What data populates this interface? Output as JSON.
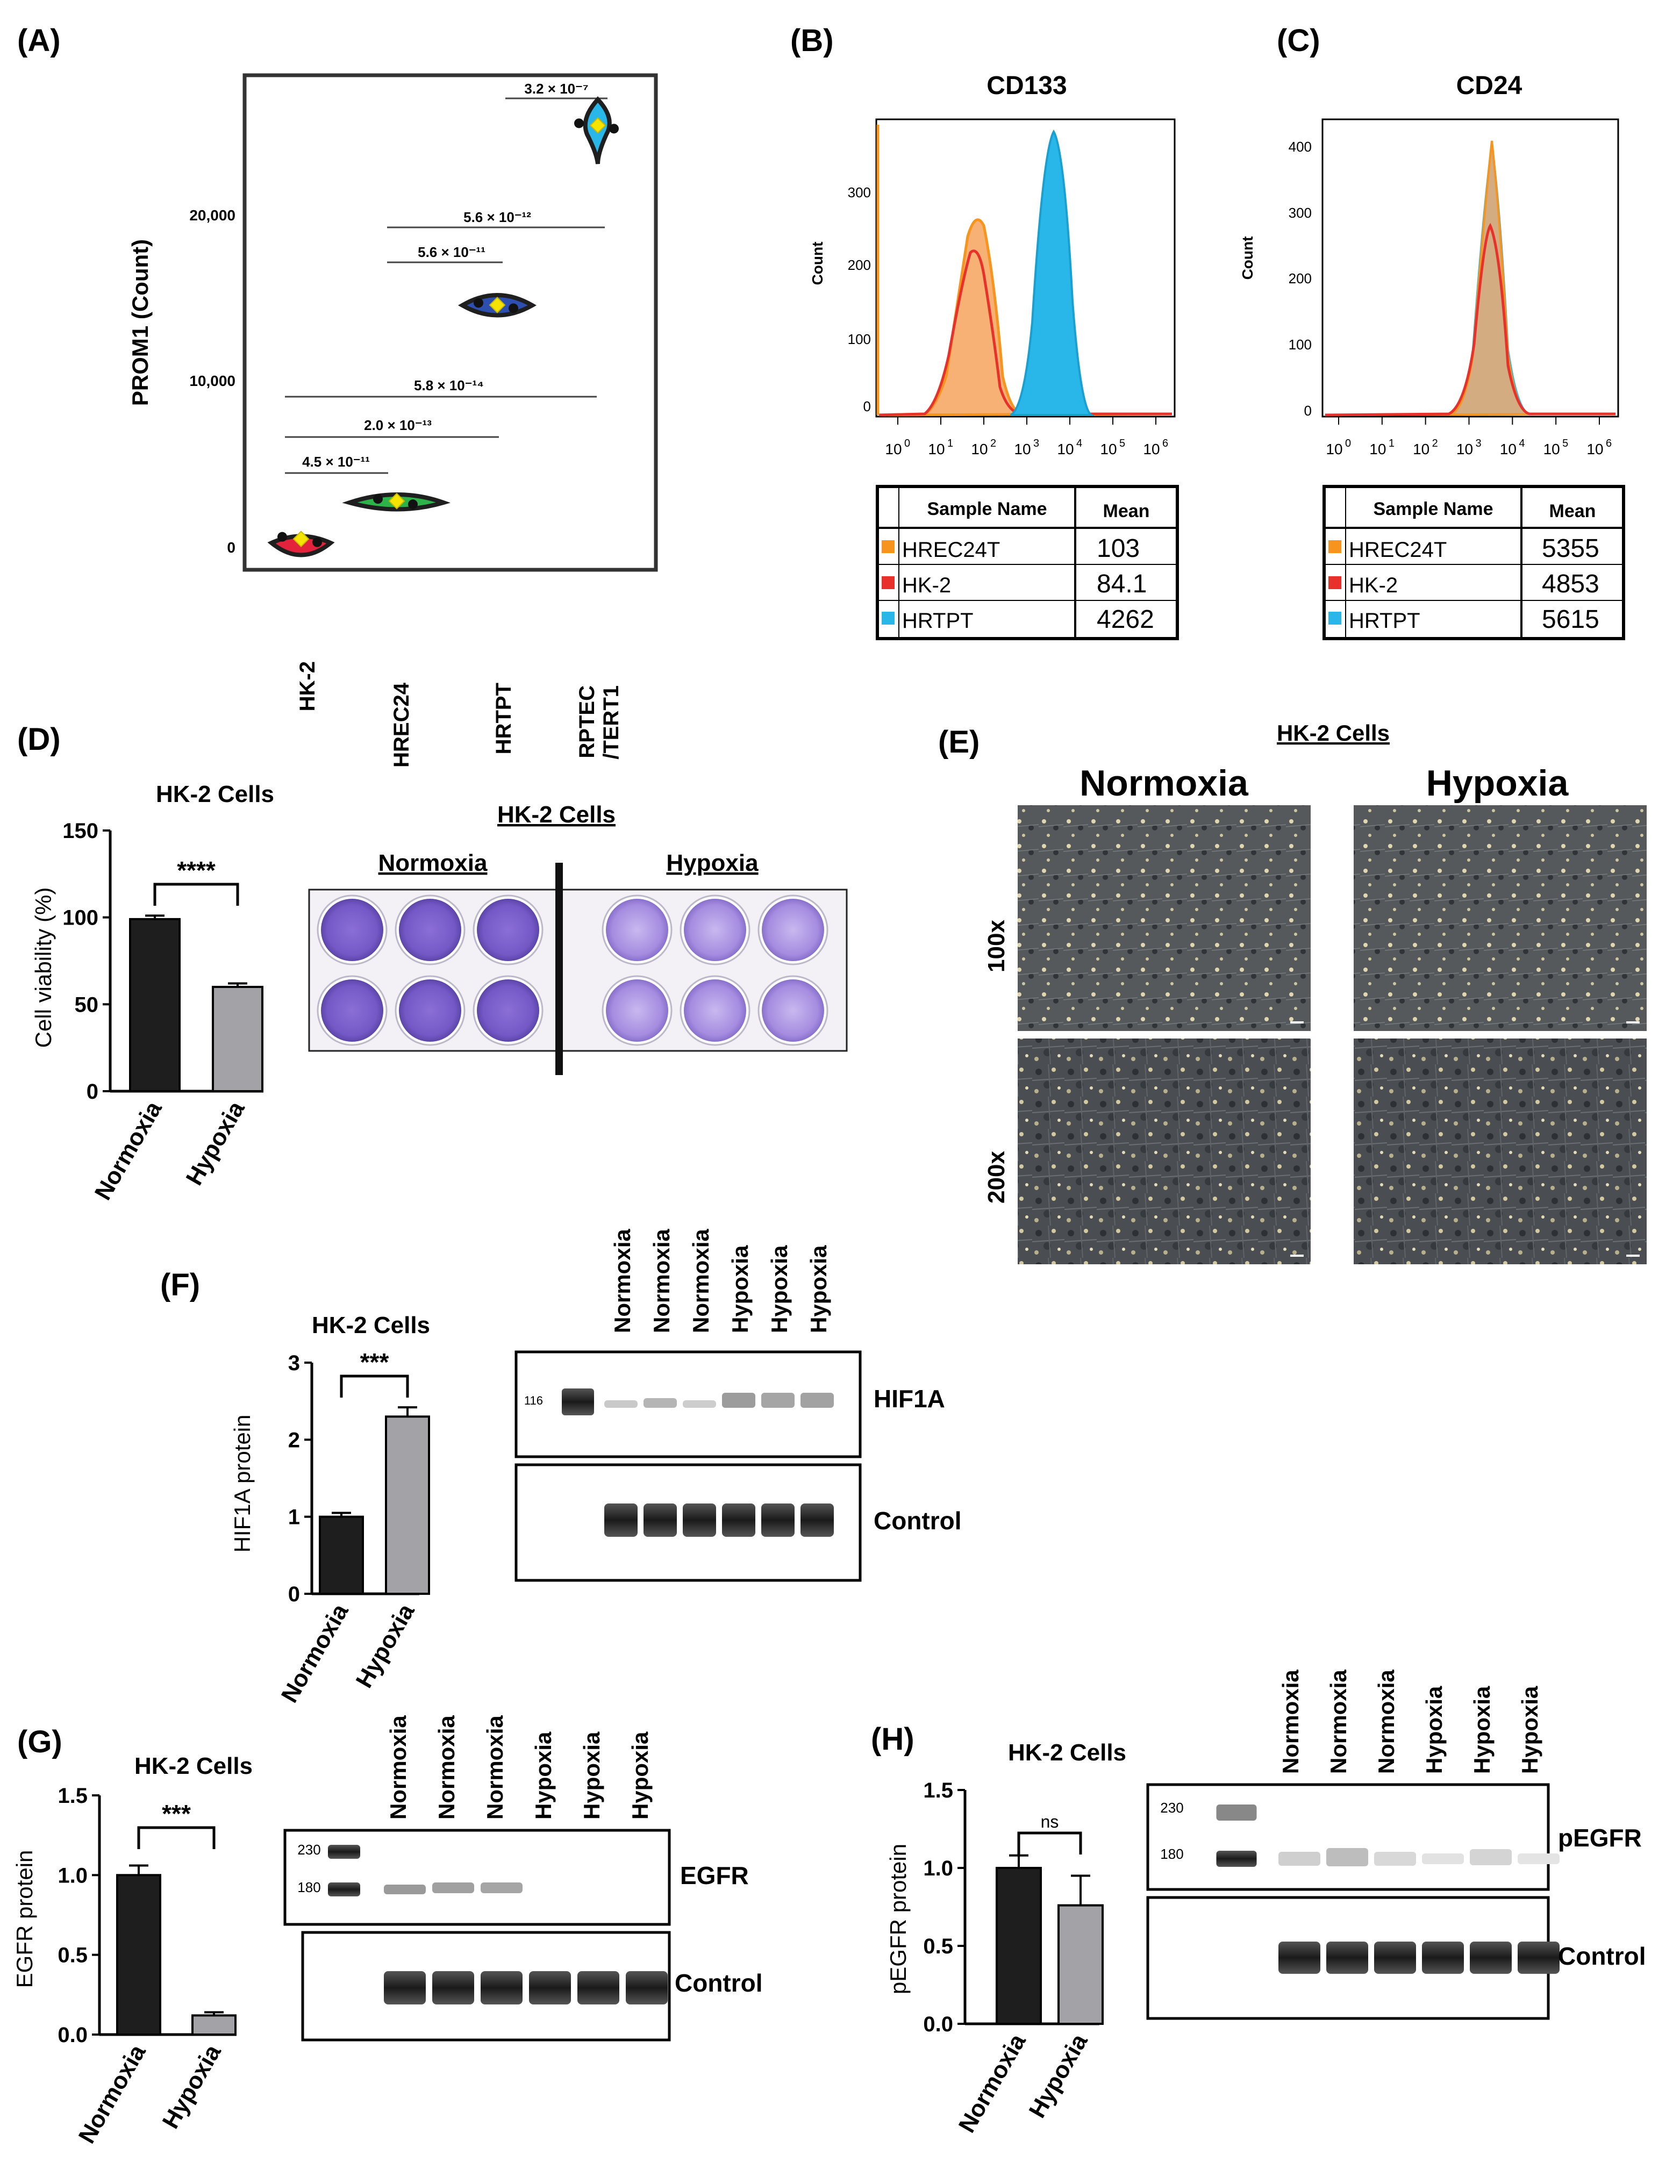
{
  "panels": {
    "A": {
      "label": "(A)"
    },
    "B": {
      "label": "(B)"
    },
    "C": {
      "label": "(C)"
    },
    "D": {
      "label": "(D)"
    },
    "E": {
      "label": "(E)"
    },
    "F": {
      "label": "(F)"
    },
    "G": {
      "label": "(G)"
    },
    "H": {
      "label": "(H)"
    }
  },
  "panel_a": {
    "ylabel": "PROM1 (Count)",
    "yticks": [
      "0",
      "10,000",
      "20,000"
    ],
    "pvalues": [
      "3.2 × 10⁻⁷",
      "5.6 × 10⁻¹²",
      "5.6 × 10⁻¹¹",
      "5.8 × 10⁻¹⁴",
      "2.0 × 10⁻¹³",
      "4.5 × 10⁻¹¹"
    ],
    "xticks": [
      "HK-2",
      "HREC24",
      "HRTPT",
      "RPTEC",
      "/TERT1"
    ]
  },
  "panel_b": {
    "title": "CD133",
    "ylabel": "Count",
    "yticks": [
      "0",
      "100",
      "200",
      "300"
    ],
    "table": {
      "headers": [
        "Sample Name",
        "Mean"
      ],
      "rows": [
        {
          "name": "HREC24T",
          "mean": "103",
          "color": "#f7941d"
        },
        {
          "name": "HK-2",
          "mean": "84.1",
          "color": "#e8312a"
        },
        {
          "name": "HRTPT",
          "mean": "4262",
          "color": "#29b6e8"
        }
      ]
    }
  },
  "panel_c": {
    "title": "CD24",
    "ylabel": "Count",
    "yticks": [
      "0",
      "100",
      "200",
      "300",
      "400"
    ],
    "table": {
      "headers": [
        "Sample Name",
        "Mean"
      ],
      "rows": [
        {
          "name": "HREC24T",
          "mean": "5355",
          "color": "#f7941d"
        },
        {
          "name": "HK-2",
          "mean": "4853",
          "color": "#e8312a"
        },
        {
          "name": "HRTPT",
          "mean": "5615",
          "color": "#29b6e8"
        }
      ]
    }
  },
  "flow_xticks": [
    "10",
    "10",
    "10",
    "10",
    "10",
    "10",
    "10"
  ],
  "flow_xexp": [
    "0",
    "1",
    "2",
    "3",
    "4",
    "5",
    "6"
  ],
  "panel_d": {
    "title": "HK-2 Cells",
    "ylabel": "Cell viability (%)",
    "yticks": [
      "0",
      "50",
      "100",
      "150"
    ],
    "sig": "****",
    "plate_title": "HK-2 Cells",
    "plate_left": "Normoxia",
    "plate_right": "Hypoxia"
  },
  "panel_e": {
    "title": "HK-2 Cells",
    "col_left": "Normoxia",
    "col_right": "Hypoxia",
    "row_top": "100x",
    "row_bottom": "200x"
  },
  "panel_f": {
    "title": "HK-2 Cells",
    "ylabel": "HIF1A  protein",
    "yticks": [
      "0",
      "1",
      "2",
      "3"
    ],
    "sig": "***",
    "ladder": "116",
    "blot_top": "HIF1A",
    "blot_bottom": "Control"
  },
  "panel_g": {
    "title": "HK-2 Cells",
    "ylabel": "EGFR  protein",
    "yticks": [
      "0.0",
      "0.5",
      "1.0",
      "1.5"
    ],
    "sig": "***",
    "ladder_hi": "230",
    "ladder_lo": "180",
    "blot_top": "EGFR",
    "blot_bottom": "Control"
  },
  "panel_h": {
    "title": "HK-2 Cells",
    "ylabel": "pEGFR  protein",
    "yticks": [
      "0.0",
      "0.5",
      "1.0",
      "1.5"
    ],
    "sig": "ns",
    "ladder_hi": "230",
    "ladder_lo": "180",
    "blot_top": "pEGFR",
    "blot_bottom": "Control"
  },
  "lanes": [
    "Normoxia",
    "Normoxia",
    "Normoxia",
    "Hypoxia",
    "Hypoxia",
    "Hypoxia"
  ],
  "bar_x": [
    "Normoxia",
    "Hypoxia"
  ],
  "chart_data": [
    {
      "type": "scatter",
      "ylabel": "PROM1 (Count)",
      "categories": [
        "HK-2",
        "HREC24",
        "HRTPT",
        "RPTEC /TERT1"
      ],
      "values": [
        500,
        2800,
        14700,
        25600
      ],
      "ylim": [
        0,
        28000
      ]
    },
    {
      "type": "bar",
      "title": "HK-2 Cells",
      "ylabel": "Cell viability (%)",
      "categories": [
        "Normoxia",
        "Hypoxia"
      ],
      "values": [
        99,
        60
      ],
      "errors": [
        2,
        2
      ],
      "ylim": [
        0,
        150
      ]
    },
    {
      "type": "bar",
      "title": "HK-2 Cells",
      "ylabel": "HIF1A  protein",
      "categories": [
        "Normoxia",
        "Hypoxia"
      ],
      "values": [
        1.0,
        2.3
      ],
      "errors": [
        0.05,
        0.12
      ],
      "ylim": [
        0,
        3
      ]
    },
    {
      "type": "bar",
      "title": "HK-2 Cells",
      "ylabel": "EGFR  protein",
      "categories": [
        "Normoxia",
        "Hypoxia"
      ],
      "values": [
        1.0,
        0.12
      ],
      "errors": [
        0.06,
        0.02
      ],
      "ylim": [
        0,
        1.5
      ]
    },
    {
      "type": "bar",
      "title": "HK-2 Cells",
      "ylabel": "pEGFR  protein",
      "categories": [
        "Normoxia",
        "Hypoxia"
      ],
      "values": [
        1.0,
        0.76
      ],
      "errors": [
        0.08,
        0.19
      ],
      "ylim": [
        0,
        1.5
      ]
    }
  ]
}
